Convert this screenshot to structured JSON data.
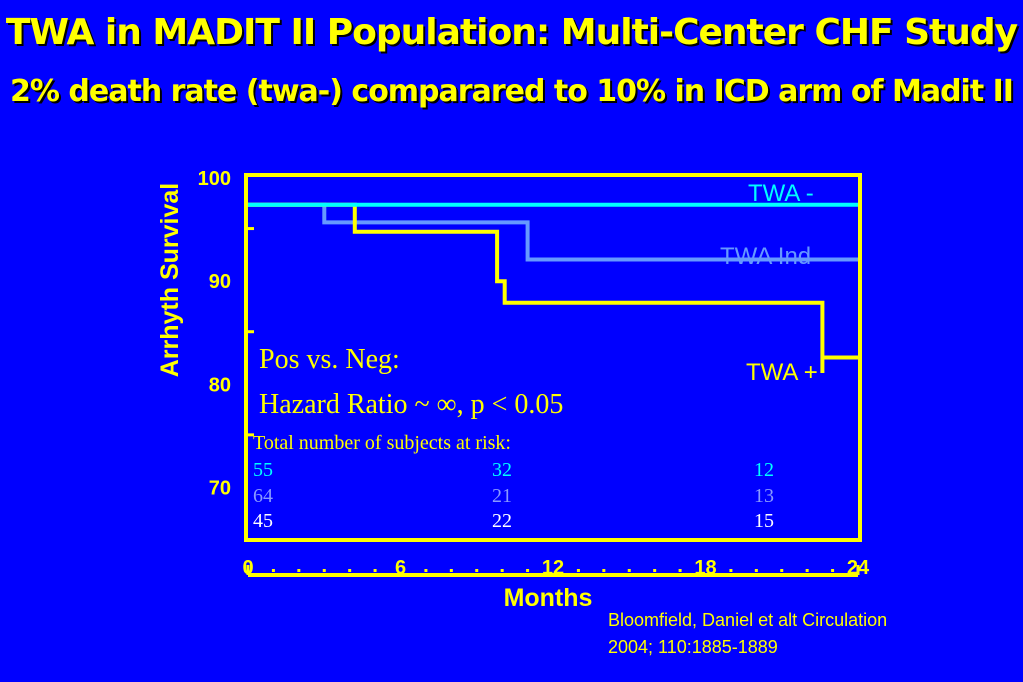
{
  "slide": {
    "title": "TWA in MADIT II Population: Multi-Center CHF Study",
    "subtitle": "2% death rate (twa-) comparared to 10% in ICD arm of Madit II",
    "citation_line1": "Bloomfield, Daniel et alt  Circulation",
    "citation_line2": "2004; 110:1885-1889"
  },
  "colors": {
    "background": "#0000ff",
    "yellow": "#ffff00",
    "twa_neg": "#00ffff",
    "twa_ind": "#6699ff",
    "twa_pos": "#ffff00",
    "at_risk_neg": "#00ffff",
    "at_risk_ind": "#8899ff",
    "at_risk_pos": "#ffffff"
  },
  "chart_data": {
    "type": "line",
    "step": true,
    "xlabel": "Months",
    "ylabel": "Arrhyth Survival",
    "xlim": [
      0,
      24
    ],
    "ylim": [
      65,
      100
    ],
    "x_ticks": [
      "0",
      "6",
      "12",
      "18",
      "24"
    ],
    "y_ticks": [
      "100",
      "90",
      "80",
      "70"
    ],
    "series": [
      {
        "name": "TWA -",
        "color": "#00ffff",
        "points": [
          [
            0,
            97.3
          ],
          [
            24,
            97.3
          ]
        ]
      },
      {
        "name": "TWA Ind",
        "color": "#6699ff",
        "points": [
          [
            0,
            97.3
          ],
          [
            3,
            97.3
          ],
          [
            3,
            95.6
          ],
          [
            11,
            95.6
          ],
          [
            11,
            92.0
          ],
          [
            24,
            92.0
          ]
        ]
      },
      {
        "name": "TWA +",
        "color": "#ffff00",
        "points": [
          [
            0,
            97.3
          ],
          [
            4.2,
            97.3
          ],
          [
            4.2,
            94.7
          ],
          [
            9.8,
            94.7
          ],
          [
            9.8,
            89.9
          ],
          [
            10.1,
            89.9
          ],
          [
            10.1,
            87.8
          ],
          [
            22.6,
            87.8
          ],
          [
            22.6,
            81.0
          ],
          [
            22.6,
            82.5
          ],
          [
            24,
            82.5
          ]
        ]
      }
    ],
    "annotation_line1": "Pos vs. Neg:",
    "annotation_line2": "Hazard Ratio ~ ∞,  p < 0.05",
    "at_risk": {
      "title": "Total number of subjects at risk:",
      "months": [
        0,
        12,
        24
      ],
      "rows": [
        {
          "series": "TWA -",
          "values": [
            "55",
            "32",
            "12"
          ]
        },
        {
          "series": "TWA Ind",
          "values": [
            "64",
            "21",
            "13"
          ]
        },
        {
          "series": "TWA +",
          "values": [
            "45",
            "22",
            "15"
          ]
        }
      ]
    }
  }
}
